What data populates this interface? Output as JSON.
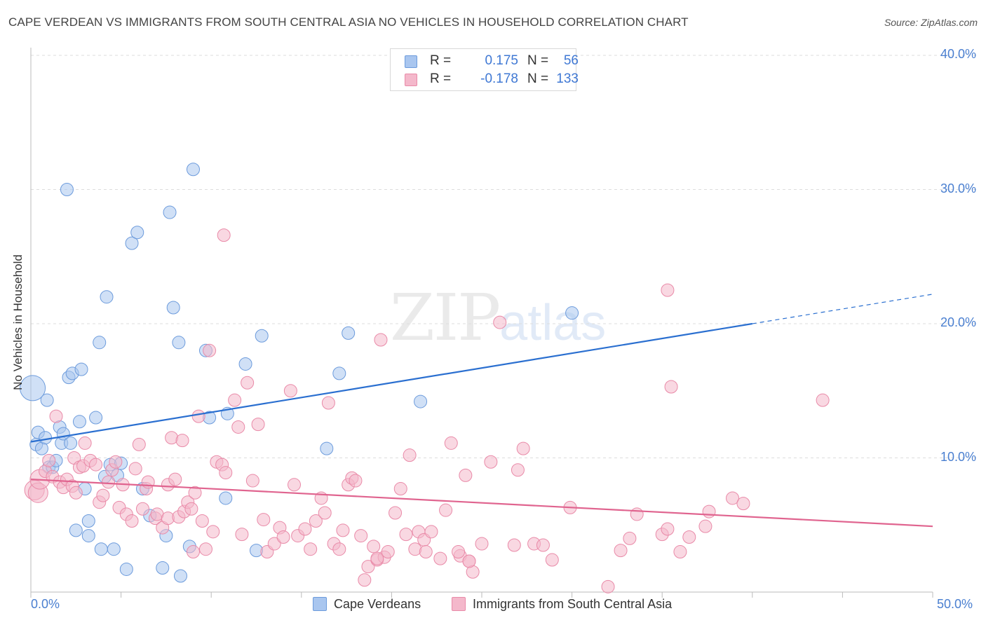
{
  "title": "CAPE VERDEAN VS IMMIGRANTS FROM SOUTH CENTRAL ASIA NO VEHICLES IN HOUSEHOLD CORRELATION CHART",
  "source": "Source: ZipAtlas.com",
  "watermark": {
    "zip": "ZIP",
    "atlas": "atlas"
  },
  "stats": [
    {
      "r_label": "R =",
      "r_value": "0.175",
      "n_label": "N =",
      "n_value": "56"
    },
    {
      "r_label": "R =",
      "r_value": "-0.178",
      "n_label": "N =",
      "n_value": "133"
    }
  ],
  "colors": {
    "blue_fill": "#a9c6ef",
    "blue_stroke": "#6c9bdc",
    "blue_line": "#2a6fd0",
    "pink_fill": "#f4b8cb",
    "pink_stroke": "#e98aa8",
    "pink_line": "#e0648f",
    "tick_text": "#4a7fd0",
    "grid": "#dddddd"
  },
  "chart_data": {
    "type": "scatter",
    "title": "CAPE VERDEAN VS IMMIGRANTS FROM SOUTH CENTRAL ASIA NO VEHICLES IN HOUSEHOLD CORRELATION CHART",
    "xlabel": "",
    "ylabel": "No Vehicles in Household",
    "xlim": [
      0,
      50
    ],
    "ylim": [
      0,
      40
    ],
    "x_tick_labels": [
      "0.0%",
      "50.0%"
    ],
    "y_ticks": [
      10,
      20,
      30,
      40
    ],
    "y_tick_labels": [
      "10.0%",
      "20.0%",
      "30.0%",
      "40.0%"
    ],
    "grid": true,
    "legend_position": "bottom",
    "series": [
      {
        "name": "Cape Verdeans",
        "color": "#a9c6ef",
        "trend": {
          "x": [
            0,
            40
          ],
          "y": [
            11.2,
            20.0
          ],
          "dashed_extension": {
            "x": [
              40,
              50
            ],
            "y": [
              20.0,
              22.2
            ]
          }
        },
        "points": [
          [
            0.1,
            15.2
          ],
          [
            0.3,
            11.0
          ],
          [
            0.4,
            11.9
          ],
          [
            0.6,
            10.7
          ],
          [
            0.8,
            11.5
          ],
          [
            0.9,
            14.3
          ],
          [
            1.0,
            9.3
          ],
          [
            1.2,
            9.3
          ],
          [
            1.4,
            9.8
          ],
          [
            1.6,
            12.3
          ],
          [
            1.7,
            11.1
          ],
          [
            1.8,
            11.8
          ],
          [
            2.0,
            30.0
          ],
          [
            2.1,
            16.0
          ],
          [
            2.2,
            11.1
          ],
          [
            2.3,
            16.3
          ],
          [
            2.5,
            4.6
          ],
          [
            2.7,
            12.7
          ],
          [
            2.8,
            16.6
          ],
          [
            3.0,
            7.7
          ],
          [
            3.2,
            4.2
          ],
          [
            3.2,
            5.3
          ],
          [
            3.6,
            13.0
          ],
          [
            3.8,
            18.6
          ],
          [
            3.9,
            3.2
          ],
          [
            4.1,
            8.6
          ],
          [
            4.2,
            22.0
          ],
          [
            4.4,
            9.5
          ],
          [
            4.6,
            3.2
          ],
          [
            4.8,
            8.7
          ],
          [
            5.0,
            9.6
          ],
          [
            5.3,
            1.7
          ],
          [
            5.6,
            26.0
          ],
          [
            5.9,
            26.8
          ],
          [
            6.2,
            7.7
          ],
          [
            6.6,
            5.7
          ],
          [
            7.3,
            1.8
          ],
          [
            7.7,
            28.3
          ],
          [
            7.9,
            21.2
          ],
          [
            8.2,
            18.6
          ],
          [
            8.8,
            3.4
          ],
          [
            9.0,
            31.5
          ],
          [
            9.7,
            18.0
          ],
          [
            9.9,
            13.0
          ],
          [
            10.9,
            13.3
          ],
          [
            10.8,
            7.0
          ],
          [
            11.9,
            17.0
          ],
          [
            12.5,
            3.1
          ],
          [
            12.8,
            19.1
          ],
          [
            16.4,
            10.7
          ],
          [
            17.1,
            16.3
          ],
          [
            17.6,
            19.3
          ],
          [
            21.6,
            14.2
          ],
          [
            30.0,
            20.8
          ],
          [
            8.3,
            1.2
          ],
          [
            7.5,
            4.2
          ]
        ]
      },
      {
        "name": "Immigrants from South Central Asia",
        "color": "#f4b8cb",
        "trend": {
          "x": [
            0,
            50
          ],
          "y": [
            8.4,
            4.9
          ]
        },
        "points": [
          [
            0.2,
            7.6
          ],
          [
            0.4,
            7.4
          ],
          [
            0.5,
            8.4
          ],
          [
            0.8,
            9.0
          ],
          [
            1.0,
            9.8
          ],
          [
            1.2,
            8.6
          ],
          [
            1.4,
            13.1
          ],
          [
            1.6,
            8.2
          ],
          [
            1.8,
            7.8
          ],
          [
            2.0,
            8.4
          ],
          [
            2.3,
            7.9
          ],
          [
            2.4,
            10.0
          ],
          [
            2.5,
            7.4
          ],
          [
            2.7,
            9.3
          ],
          [
            2.9,
            9.4
          ],
          [
            3.0,
            11.1
          ],
          [
            3.3,
            9.8
          ],
          [
            3.6,
            9.5
          ],
          [
            3.8,
            6.7
          ],
          [
            4.0,
            7.2
          ],
          [
            4.3,
            8.2
          ],
          [
            4.5,
            9.1
          ],
          [
            4.7,
            9.7
          ],
          [
            4.9,
            6.3
          ],
          [
            5.1,
            8.0
          ],
          [
            5.3,
            5.8
          ],
          [
            5.6,
            5.3
          ],
          [
            5.8,
            9.2
          ],
          [
            6.0,
            11.0
          ],
          [
            6.2,
            6.2
          ],
          [
            6.4,
            7.7
          ],
          [
            6.5,
            8.2
          ],
          [
            6.9,
            5.5
          ],
          [
            7.0,
            5.8
          ],
          [
            7.3,
            4.8
          ],
          [
            7.6,
            5.5
          ],
          [
            7.6,
            8.0
          ],
          [
            7.8,
            11.5
          ],
          [
            8.0,
            8.4
          ],
          [
            8.2,
            5.6
          ],
          [
            8.4,
            11.3
          ],
          [
            8.5,
            6.0
          ],
          [
            8.7,
            6.7
          ],
          [
            8.9,
            6.2
          ],
          [
            9.1,
            7.4
          ],
          [
            9.3,
            13.1
          ],
          [
            9.5,
            5.3
          ],
          [
            9.7,
            3.2
          ],
          [
            9.9,
            18.0
          ],
          [
            10.1,
            4.5
          ],
          [
            10.3,
            9.7
          ],
          [
            10.6,
            9.5
          ],
          [
            10.8,
            8.9
          ],
          [
            11.3,
            14.3
          ],
          [
            11.5,
            12.3
          ],
          [
            11.7,
            4.3
          ],
          [
            12.0,
            15.6
          ],
          [
            12.3,
            8.3
          ],
          [
            12.6,
            12.5
          ],
          [
            12.9,
            5.4
          ],
          [
            13.1,
            3.0
          ],
          [
            13.5,
            3.6
          ],
          [
            13.8,
            4.8
          ],
          [
            14.0,
            4.1
          ],
          [
            14.4,
            15.0
          ],
          [
            14.6,
            8.0
          ],
          [
            14.8,
            4.2
          ],
          [
            15.2,
            4.7
          ],
          [
            15.5,
            3.2
          ],
          [
            15.8,
            5.3
          ],
          [
            16.1,
            7.0
          ],
          [
            16.3,
            5.9
          ],
          [
            16.5,
            14.1
          ],
          [
            16.8,
            3.6
          ],
          [
            17.1,
            3.2
          ],
          [
            17.3,
            4.6
          ],
          [
            17.6,
            8.0
          ],
          [
            17.8,
            8.5
          ],
          [
            18.0,
            8.3
          ],
          [
            18.3,
            4.2
          ],
          [
            18.5,
            0.9
          ],
          [
            18.7,
            1.9
          ],
          [
            19.0,
            3.4
          ],
          [
            19.2,
            2.4
          ],
          [
            19.4,
            18.8
          ],
          [
            19.6,
            2.6
          ],
          [
            19.8,
            3.0
          ],
          [
            20.2,
            5.9
          ],
          [
            20.5,
            7.7
          ],
          [
            20.8,
            4.3
          ],
          [
            21.0,
            10.2
          ],
          [
            21.3,
            3.2
          ],
          [
            21.5,
            4.5
          ],
          [
            21.8,
            3.9
          ],
          [
            22.2,
            4.5
          ],
          [
            22.7,
            2.5
          ],
          [
            23.0,
            6.1
          ],
          [
            23.3,
            11.1
          ],
          [
            23.8,
            2.7
          ],
          [
            24.1,
            8.7
          ],
          [
            24.3,
            2.3
          ],
          [
            24.5,
            1.5
          ],
          [
            25.0,
            3.6
          ],
          [
            25.5,
            9.7
          ],
          [
            26.0,
            20.1
          ],
          [
            27.0,
            9.1
          ],
          [
            27.3,
            10.7
          ],
          [
            27.9,
            3.6
          ],
          [
            28.4,
            3.5
          ],
          [
            28.9,
            2.4
          ],
          [
            29.9,
            6.3
          ],
          [
            32.0,
            0.4
          ],
          [
            32.7,
            3.1
          ],
          [
            33.2,
            4.0
          ],
          [
            33.6,
            5.8
          ],
          [
            35.0,
            4.3
          ],
          [
            35.3,
            4.7
          ],
          [
            35.5,
            15.3
          ],
          [
            36.0,
            3.0
          ],
          [
            36.5,
            4.1
          ],
          [
            37.4,
            4.9
          ],
          [
            37.6,
            6.0
          ],
          [
            38.9,
            7.0
          ],
          [
            39.5,
            6.6
          ],
          [
            43.9,
            14.3
          ],
          [
            10.7,
            26.6
          ],
          [
            35.3,
            22.5
          ],
          [
            19.2,
            2.5
          ],
          [
            21.9,
            3.0
          ],
          [
            26.8,
            3.5
          ],
          [
            24.3,
            2.3
          ],
          [
            23.7,
            3.0
          ],
          [
            9.0,
            3.0
          ]
        ]
      }
    ]
  },
  "legend": [
    {
      "label": "Cape Verdeans"
    },
    {
      "label": "Immigrants from South Central Asia"
    }
  ]
}
